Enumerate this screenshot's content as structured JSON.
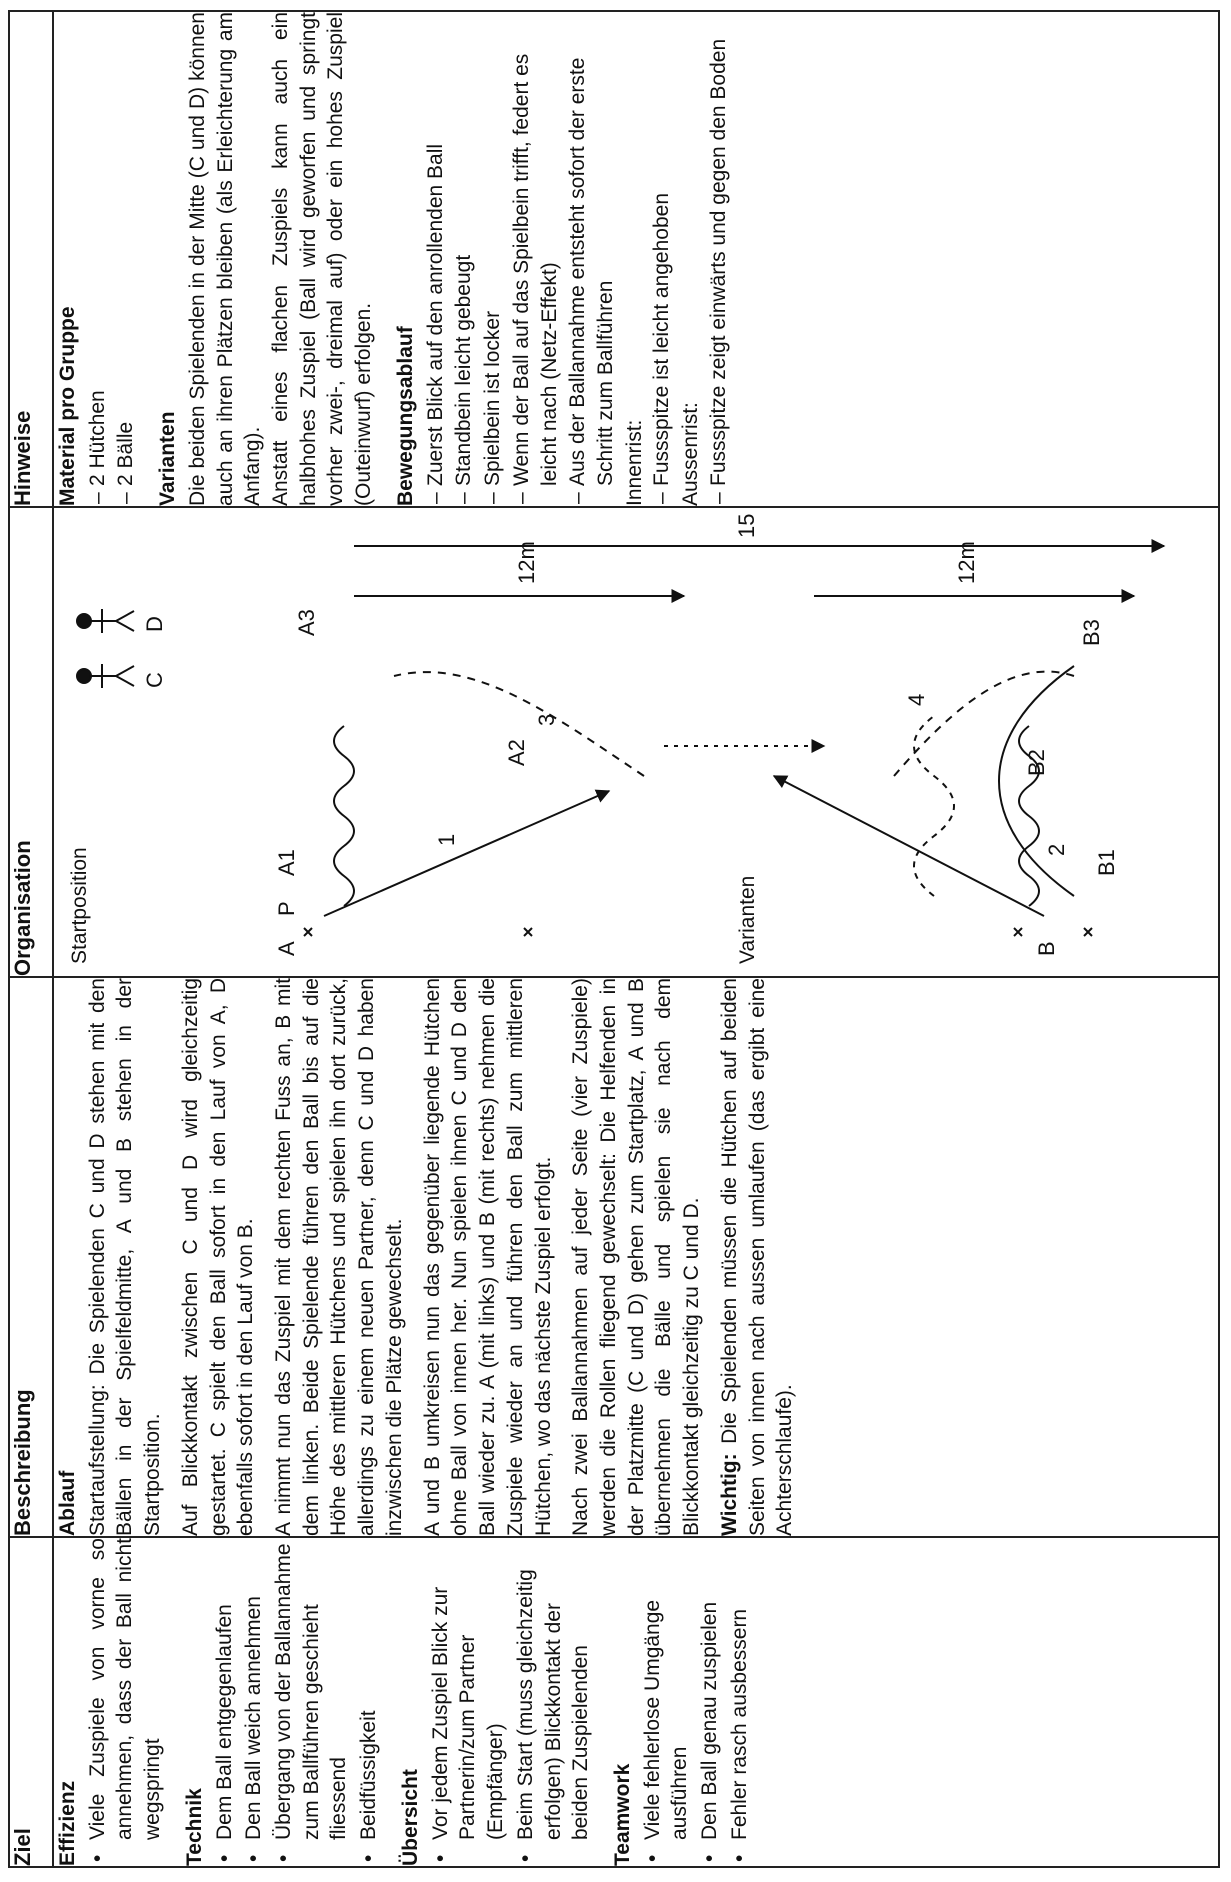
{
  "headers": {
    "ziel": "Ziel",
    "beschreibung": "Beschreibung",
    "organisation": "Organisation",
    "hinweise": "Hinweise"
  },
  "ziel": [
    {
      "heading": "Effizienz",
      "items": [
        "Viele Zuspiele von vorne so annehmen, dass der Ball nicht wegspringt"
      ]
    },
    {
      "heading": "Technik",
      "items": [
        "Dem Ball entgegenlaufen",
        "Den Ball weich annehmen",
        "Übergang von der Ballannahme zum Ballführen geschieht fliessend",
        "Beidfüssigkeit"
      ]
    },
    {
      "heading": "Übersicht",
      "items": [
        "Vor jedem Zuspiel Blick zur Partnerin/zum Partner (Empfänger)",
        "Beim Start (muss gleichzeitig erfolgen) Blickkontakt der beiden Zuspielenden"
      ]
    },
    {
      "heading": "Teamwork",
      "items": [
        "Viele fehlerlose Umgänge ausführen",
        "Den Ball genau zuspielen",
        "Fehler rasch ausbessern"
      ]
    }
  ],
  "beschreibung": {
    "heading": "Ablauf",
    "paragraphs": [
      "Startaufstellung: Die Spielenden C und D stehen mit den Bällen in der Spielfeldmitte, A und B stehen in der Startposition.",
      "Auf Blickkontakt zwischen C und D wird gleichzeitig gestartet. C spielt den Ball sofort in den Lauf von A, D ebenfalls sofort in den Lauf von B.",
      "A nimmt nun das Zuspiel mit dem rechten Fuss an, B mit dem linken. Beide Spielende führen den Ball bis auf die Höhe des mittleren Hütchens und spielen ihn dort zurück, allerdings zu einem neuen Partner, denn C und D haben inzwischen die Plätze gewechselt.",
      "A und B umkreisen nun das gegenüber liegende Hütchen ohne Ball von innen her. Nun spielen ihnen C und D den Ball wieder zu. A (mit links) und B (mit rechts) nehmen die Zuspiele wieder an und führen den Ball zum mittleren Hütchen, wo das nächste Zuspiel erfolgt.",
      "Nach zwei Ballannahmen auf jeder Seite (vier Zuspiele) werden die Rollen fliegend gewechselt: Die Helfenden in der Platzmitte (C und D) gehen zum Startplatz, A und B übernehmen die Bälle und spielen sie nach dem Blickkontakt gleichzeitig zu C und D."
    ],
    "important_label": "Wichtig:",
    "important_text": " Die Spielenden müssen die Hütchen auf beiden Seiten von innen nach aussen umlaufen (das ergibt eine Achterschlaufe)."
  },
  "organisation": {
    "start_label": "Startposition",
    "variants_label": "Varianten",
    "players": {
      "a": "A",
      "b": "B",
      "c": "C",
      "d": "D",
      "a1": "A1",
      "a2": "A2",
      "a3": "A3",
      "b1": "B1",
      "b2": "B2",
      "b3": "B3",
      "p": "P"
    },
    "numbers": {
      "n1": "1",
      "n2": "2",
      "n3": "3",
      "n4": "4"
    },
    "dist_12": "12m",
    "dist_15": "15 m"
  },
  "hinweise": {
    "material_heading": "Material pro Gruppe",
    "material": [
      "2 Hütchen",
      "2 Bälle"
    ],
    "varianten_heading": "Varianten",
    "varianten_paragraphs": [
      "Die beiden Spielenden in der Mitte (C und D) können auch an ihren Plätzen bleiben (als Erleichterung am Anfang).",
      "Anstatt eines flachen Zuspiels kann auch ein halbhohes Zuspiel (Ball wird geworfen und springt vorher zwei-, dreimal auf) oder ein hohes Zuspiel (Outeinwurf) erfolgen."
    ],
    "bewegung_heading": "Bewegungsablauf",
    "bewegung": [
      "Zuerst Blick auf den anrollenden Ball",
      "Standbein leicht gebeugt",
      "Spielbein ist locker",
      "Wenn der Ball auf das Spielbein trifft, federt es leicht nach (Netz-Effekt)",
      "Aus der Ballannahme entsteht sofort der erste Schritt zum Ballführen"
    ],
    "innenrist_label": "Innenrist:",
    "innenrist": [
      "Fussspitze ist leicht angehoben"
    ],
    "aussenrist_label": "Aussenrist:",
    "aussenrist": [
      "Fussspitze zeigt einwärts und gegen den Boden"
    ]
  }
}
